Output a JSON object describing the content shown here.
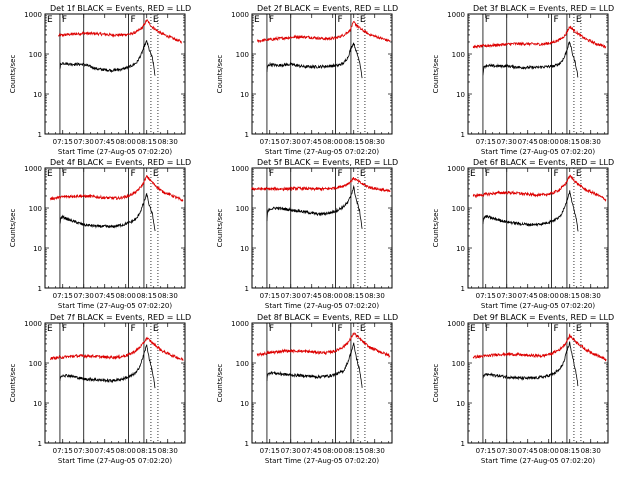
{
  "figure": {
    "x_tick_labels": [
      "07:15",
      "07:30",
      "07:45",
      "08:00",
      "08:15",
      "08:30"
    ],
    "x_label": "Start Time (27-Aug-05 07:02:20)",
    "y_label": "Counts/sec",
    "y_tick_labels": [
      "1",
      "10",
      "100",
      "1000"
    ],
    "interval_labels": [
      "F",
      "F",
      "E"
    ],
    "colors": {
      "events": "#000000",
      "lld": "#dd0000",
      "frame": "#000000",
      "background": "#ffffff"
    }
  },
  "chart_data": [
    {
      "type": "line",
      "title": "Det 1f BLACK = Events, RED = LLD",
      "first_label": "E",
      "xlim": [
        "07:02:20",
        "08:42:20"
      ],
      "x_ticks": [
        "07:15",
        "07:30",
        "07:45",
        "08:00",
        "08:15",
        "08:30"
      ],
      "ylim": [
        1,
        1000
      ],
      "y_scale": "log",
      "xlabel": "Start Time (27-Aug-05 07:02:20)",
      "ylabel": "Counts/sec",
      "vlines_solid": [
        "07:13:00",
        "07:30:00",
        "08:02:00",
        "08:13:00"
      ],
      "vlines_dotted": [
        "08:18:00",
        "08:23:00"
      ],
      "series": [
        {
          "color": "#dd0000",
          "x": [
            "07:12",
            "07:20",
            "07:30",
            "07:40",
            "07:50",
            "07:58",
            "08:04",
            "08:08",
            "08:12",
            "08:15",
            "08:19",
            "08:25",
            "08:32",
            "08:40"
          ],
          "values": [
            290,
            310,
            330,
            320,
            300,
            300,
            320,
            360,
            460,
            700,
            470,
            330,
            260,
            200
          ]
        },
        {
          "color": "#000000",
          "x": [
            "07:13",
            "07:13.5",
            "07:15",
            "07:20",
            "07:30",
            "07:40",
            "07:50",
            "07:58",
            "08:04",
            "08:08",
            "08:11",
            "08:13",
            "08:15",
            "08:17",
            "08:19",
            "08:20",
            "08:21"
          ],
          "values": [
            40,
            55,
            60,
            56,
            55,
            42,
            39,
            42,
            50,
            62,
            95,
            150,
            210,
            120,
            80,
            50,
            28
          ]
        }
      ]
    },
    {
      "type": "line",
      "title": "Det 2f BLACK = Events, RED = LLD",
      "first_label": "E",
      "xlim": [
        "07:02:20",
        "08:42:20"
      ],
      "x_ticks": [
        "07:15",
        "07:30",
        "07:45",
        "08:00",
        "08:15",
        "08:30"
      ],
      "ylim": [
        1,
        1000
      ],
      "y_scale": "log",
      "xlabel": "Start Time (27-Aug-05 07:02:20)",
      "ylabel": "Counts/sec",
      "vlines_solid": [
        "07:13:00",
        "07:30:00",
        "08:02:00",
        "08:13:00"
      ],
      "vlines_dotted": [
        "08:18:00",
        "08:23:00"
      ],
      "series": [
        {
          "color": "#dd0000",
          "x": [
            "07:06",
            "07:15",
            "07:25",
            "07:35",
            "07:45",
            "07:55",
            "08:02",
            "08:08",
            "08:12",
            "08:15",
            "08:20",
            "08:26",
            "08:34",
            "08:41"
          ],
          "values": [
            210,
            230,
            250,
            270,
            260,
            240,
            250,
            300,
            380,
            620,
            420,
            310,
            250,
            210
          ]
        },
        {
          "color": "#000000",
          "x": [
            "07:13",
            "07:13.5",
            "07:15",
            "07:20",
            "07:30",
            "07:40",
            "07:50",
            "07:58",
            "08:04",
            "08:08",
            "08:11",
            "08:13",
            "08:15",
            "08:17",
            "08:19",
            "08:20",
            "08:21"
          ],
          "values": [
            35,
            50,
            55,
            52,
            55,
            48,
            48,
            50,
            52,
            60,
            85,
            140,
            190,
            110,
            70,
            45,
            25
          ]
        }
      ]
    },
    {
      "type": "line",
      "title": "Det 3f BLACK = Events, RED = LLD",
      "first_label": "",
      "xlim": [
        "07:02:20",
        "08:42:20"
      ],
      "x_ticks": [
        "07:15",
        "07:30",
        "07:45",
        "08:00",
        "08:15",
        "08:30"
      ],
      "ylim": [
        1,
        1000
      ],
      "y_scale": "log",
      "xlabel": "Start Time (27-Aug-05 07:02:20)",
      "ylabel": "Counts/sec",
      "vlines_solid": [
        "07:13:00",
        "07:30:00",
        "08:02:00",
        "08:13:00"
      ],
      "vlines_dotted": [
        "08:18:00",
        "08:23:00"
      ],
      "series": [
        {
          "color": "#dd0000",
          "x": [
            "07:06",
            "07:15",
            "07:25",
            "07:35",
            "07:45",
            "07:55",
            "08:02",
            "08:08",
            "08:12",
            "08:15",
            "08:20",
            "08:26",
            "08:34",
            "08:41"
          ],
          "values": [
            150,
            160,
            170,
            180,
            180,
            175,
            190,
            230,
            300,
            480,
            340,
            240,
            180,
            150
          ]
        },
        {
          "color": "#000000",
          "x": [
            "07:13",
            "07:13.5",
            "07:15",
            "07:20",
            "07:30",
            "07:40",
            "07:50",
            "07:58",
            "08:04",
            "08:08",
            "08:11",
            "08:13",
            "08:15",
            "08:17",
            "08:19",
            "08:20",
            "08:21"
          ],
          "values": [
            30,
            45,
            52,
            50,
            50,
            46,
            46,
            48,
            50,
            58,
            80,
            130,
            200,
            100,
            60,
            40,
            25
          ]
        }
      ]
    },
    {
      "type": "line",
      "title": "Det 4f BLACK = Events, RED = LLD",
      "first_label": "E",
      "xlim": [
        "07:02:20",
        "08:42:20"
      ],
      "x_ticks": [
        "07:15",
        "07:30",
        "07:45",
        "08:00",
        "08:15",
        "08:30"
      ],
      "ylim": [
        1,
        1000
      ],
      "y_scale": "log",
      "xlabel": "Start Time (27-Aug-05 07:02:20)",
      "ylabel": "Counts/sec",
      "vlines_solid": [
        "07:13:00",
        "07:30:00",
        "08:02:00",
        "08:13:00"
      ],
      "vlines_dotted": [
        "08:18:00",
        "08:23:00"
      ],
      "series": [
        {
          "color": "#dd0000",
          "x": [
            "07:06",
            "07:15",
            "07:25",
            "07:35",
            "07:45",
            "07:55",
            "08:02",
            "08:08",
            "08:12",
            "08:15",
            "08:20",
            "08:26",
            "08:34",
            "08:41"
          ],
          "values": [
            170,
            190,
            200,
            195,
            180,
            175,
            200,
            260,
            380,
            620,
            400,
            260,
            200,
            150
          ]
        },
        {
          "color": "#000000",
          "x": [
            "07:13",
            "07:13.5",
            "07:15",
            "07:20",
            "07:30",
            "07:40",
            "07:50",
            "07:58",
            "08:04",
            "08:08",
            "08:11",
            "08:13",
            "08:15",
            "08:17",
            "08:19",
            "08:20",
            "08:21"
          ],
          "values": [
            40,
            55,
            60,
            50,
            38,
            35,
            34,
            38,
            45,
            55,
            90,
            140,
            220,
            110,
            70,
            45,
            25
          ]
        }
      ]
    },
    {
      "type": "line",
      "title": "Det 5f BLACK = Events, RED = LLD",
      "first_label": "",
      "xlim": [
        "07:02:20",
        "08:42:20"
      ],
      "x_ticks": [
        "07:15",
        "07:30",
        "07:45",
        "08:00",
        "08:15",
        "08:30"
      ],
      "ylim": [
        1,
        1000
      ],
      "y_scale": "log",
      "xlabel": "Start Time (27-Aug-05 07:02:20)",
      "ylabel": "Counts/sec",
      "vlines_solid": [
        "07:13:00",
        "07:30:00",
        "08:02:00",
        "08:13:00"
      ],
      "vlines_dotted": [
        "08:18:00",
        "08:23:00"
      ],
      "series": [
        {
          "color": "#dd0000",
          "x": [
            "07:02",
            "07:15",
            "07:25",
            "07:35",
            "07:45",
            "07:55",
            "08:02",
            "08:08",
            "08:12",
            "08:15",
            "08:20",
            "08:26",
            "08:34",
            "08:41"
          ],
          "values": [
            300,
            300,
            300,
            310,
            300,
            300,
            320,
            360,
            430,
            560,
            420,
            330,
            290,
            260
          ]
        },
        {
          "color": "#000000",
          "x": [
            "07:13",
            "07:13.5",
            "07:15",
            "07:20",
            "07:30",
            "07:40",
            "07:50",
            "07:58",
            "08:04",
            "08:08",
            "08:11",
            "08:13",
            "08:15",
            "08:17",
            "08:19",
            "08:20",
            "08:21"
          ],
          "values": [
            45,
            80,
            95,
            100,
            90,
            80,
            70,
            75,
            90,
            110,
            140,
            210,
            330,
            150,
            90,
            55,
            30
          ]
        }
      ]
    },
    {
      "type": "line",
      "title": "Det 6f BLACK = Events, RED = LLD",
      "first_label": "E",
      "xlim": [
        "07:02:20",
        "08:42:20"
      ],
      "x_ticks": [
        "07:15",
        "07:30",
        "07:45",
        "08:00",
        "08:15",
        "08:30"
      ],
      "ylim": [
        1,
        1000
      ],
      "y_scale": "log",
      "xlabel": "Start Time (27-Aug-05 07:02:20)",
      "ylabel": "Counts/sec",
      "vlines_solid": [
        "07:13:00",
        "07:30:00",
        "08:02:00",
        "08:13:00"
      ],
      "vlines_dotted": [
        "08:18:00",
        "08:23:00"
      ],
      "series": [
        {
          "color": "#dd0000",
          "x": [
            "07:06",
            "07:15",
            "07:25",
            "07:35",
            "07:45",
            "07:55",
            "08:02",
            "08:08",
            "08:12",
            "08:15",
            "08:20",
            "08:26",
            "08:34",
            "08:41"
          ],
          "values": [
            200,
            220,
            240,
            240,
            220,
            210,
            230,
            290,
            400,
            640,
            420,
            290,
            220,
            160
          ]
        },
        {
          "color": "#000000",
          "x": [
            "07:13",
            "07:13.5",
            "07:15",
            "07:20",
            "07:30",
            "07:40",
            "07:50",
            "07:58",
            "08:04",
            "08:08",
            "08:11",
            "08:13",
            "08:15",
            "08:17",
            "08:19",
            "08:20",
            "08:21"
          ],
          "values": [
            40,
            55,
            62,
            55,
            45,
            40,
            38,
            42,
            50,
            60,
            100,
            160,
            260,
            120,
            70,
            45,
            25
          ]
        }
      ]
    },
    {
      "type": "line",
      "title": "Det 7f BLACK = Events, RED = LLD",
      "first_label": "E",
      "xlim": [
        "07:02:20",
        "08:42:20"
      ],
      "x_ticks": [
        "07:15",
        "07:30",
        "07:45",
        "08:00",
        "08:15",
        "08:30"
      ],
      "ylim": [
        1,
        1000
      ],
      "y_scale": "log",
      "xlabel": "Start Time (27-Aug-05 07:02:20)",
      "ylabel": "Counts/sec",
      "vlines_solid": [
        "07:13:00",
        "07:30:00",
        "08:02:00",
        "08:13:00"
      ],
      "vlines_dotted": [
        "08:18:00",
        "08:23:00"
      ],
      "series": [
        {
          "color": "#dd0000",
          "x": [
            "07:06",
            "07:15",
            "07:25",
            "07:35",
            "07:45",
            "07:55",
            "08:02",
            "08:08",
            "08:12",
            "08:15",
            "08:20",
            "08:26",
            "08:34",
            "08:41"
          ],
          "values": [
            130,
            140,
            150,
            150,
            140,
            140,
            160,
            210,
            290,
            420,
            300,
            200,
            150,
            120
          ]
        },
        {
          "color": "#000000",
          "x": [
            "07:13",
            "07:13.5",
            "07:15",
            "07:20",
            "07:30",
            "07:40",
            "07:50",
            "07:58",
            "08:04",
            "08:08",
            "08:11",
            "08:13",
            "08:15",
            "08:17",
            "08:19",
            "08:20",
            "08:21"
          ],
          "values": [
            35,
            45,
            50,
            48,
            40,
            38,
            36,
            40,
            48,
            60,
            100,
            170,
            280,
            120,
            60,
            40,
            22
          ]
        }
      ]
    },
    {
      "type": "line",
      "title": "Det 8f BLACK = Events, RED = LLD",
      "first_label": "",
      "xlim": [
        "07:02:20",
        "08:42:20"
      ],
      "x_ticks": [
        "07:15",
        "07:30",
        "07:45",
        "08:00",
        "08:15",
        "08:30"
      ],
      "ylim": [
        1,
        1000
      ],
      "y_scale": "log",
      "xlabel": "Start Time (27-Aug-05 07:02:20)",
      "ylabel": "Counts/sec",
      "vlines_solid": [
        "07:13:00",
        "07:30:00",
        "08:02:00",
        "08:13:00"
      ],
      "vlines_dotted": [
        "08:18:00",
        "08:23:00"
      ],
      "series": [
        {
          "color": "#dd0000",
          "x": [
            "07:06",
            "07:15",
            "07:25",
            "07:35",
            "07:45",
            "07:55",
            "08:02",
            "08:08",
            "08:12",
            "08:15",
            "08:20",
            "08:26",
            "08:34",
            "08:41"
          ],
          "values": [
            160,
            180,
            200,
            200,
            190,
            180,
            200,
            260,
            360,
            560,
            380,
            250,
            190,
            150
          ]
        },
        {
          "color": "#000000",
          "x": [
            "07:13",
            "07:13.5",
            "07:15",
            "07:20",
            "07:30",
            "07:40",
            "07:50",
            "07:58",
            "08:04",
            "08:08",
            "08:11",
            "08:13",
            "08:15",
            "08:17",
            "08:19",
            "08:20",
            "08:21"
          ],
          "values": [
            38,
            50,
            58,
            55,
            50,
            48,
            45,
            48,
            55,
            65,
            110,
            180,
            300,
            130,
            70,
            45,
            25
          ]
        }
      ]
    },
    {
      "type": "line",
      "title": "Det 9f BLACK = Events, RED = LLD",
      "first_label": "E",
      "xlim": [
        "07:02:20",
        "08:42:20"
      ],
      "x_ticks": [
        "07:15",
        "07:30",
        "07:45",
        "08:00",
        "08:15",
        "08:30"
      ],
      "ylim": [
        1,
        1000
      ],
      "y_scale": "log",
      "xlabel": "Start Time (27-Aug-05 07:02:20)",
      "ylabel": "Counts/sec",
      "vlines_solid": [
        "07:13:00",
        "07:30:00",
        "08:02:00",
        "08:13:00"
      ],
      "vlines_dotted": [
        "08:18:00",
        "08:23:00"
      ],
      "series": [
        {
          "color": "#dd0000",
          "x": [
            "07:06",
            "07:15",
            "07:25",
            "07:35",
            "07:45",
            "07:55",
            "08:02",
            "08:08",
            "08:12",
            "08:15",
            "08:20",
            "08:26",
            "08:34",
            "08:41"
          ],
          "values": [
            140,
            150,
            165,
            165,
            155,
            150,
            170,
            220,
            310,
            480,
            330,
            220,
            160,
            120
          ]
        },
        {
          "color": "#000000",
          "x": [
            "07:13",
            "07:13.5",
            "07:15",
            "07:20",
            "07:30",
            "07:40",
            "07:50",
            "07:58",
            "08:04",
            "08:08",
            "08:11",
            "08:13",
            "08:15",
            "08:17",
            "08:19",
            "08:20",
            "08:21"
          ],
          "values": [
            38,
            48,
            52,
            50,
            45,
            42,
            42,
            46,
            55,
            70,
            110,
            200,
            320,
            140,
            70,
            45,
            25
          ]
        }
      ]
    }
  ]
}
